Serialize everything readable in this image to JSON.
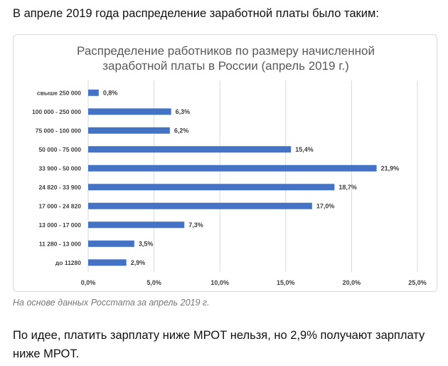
{
  "intro_text": "В апреле 2019 года распределение заработной платы было таким:",
  "caption": "На основе данных Росстата за апрель 2019 г.",
  "note": "По идее, платить зарплату ниже МРОТ нельзя, но 2,9% получают зарплату ниже МРОТ.",
  "colors": {
    "bar": "#4472c4",
    "grid": "#d9d9d9",
    "title": "#595959",
    "axis_text": "#404040"
  },
  "chart_data": {
    "type": "bar",
    "orientation": "horizontal",
    "title": "Распределение работников по размеру начисленной заработной платы в России (апрель 2019 г.)",
    "title_lines": [
      "Распределение работников по размеру начисленной",
      "заработной платы в России (апрель 2019 г.)"
    ],
    "categories": [
      "свыше 250 000",
      "100 000 - 250 000",
      "75 000 - 100 000",
      "50 000 - 75 000",
      "33 900 - 50 000",
      "24 820 - 33 900",
      "17 000 - 24 820",
      "13 000 - 17 000",
      "11 280 - 13 000",
      "до 11280"
    ],
    "values": [
      0.8,
      6.3,
      6.2,
      15.4,
      21.9,
      18.7,
      17.0,
      7.3,
      3.5,
      2.9
    ],
    "value_labels": [
      "0,8%",
      "6,3%",
      "6,2%",
      "15,4%",
      "21,9%",
      "18,7%",
      "17,0%",
      "7,3%",
      "3,5%",
      "2,9%"
    ],
    "xlim": [
      0,
      25
    ],
    "xticks": [
      0,
      5,
      10,
      15,
      20,
      25
    ],
    "xtick_labels": [
      "0,0%",
      "5,0%",
      "10,0%",
      "15,0%",
      "20,0%",
      "25,0%"
    ],
    "grid": true,
    "legend": false
  }
}
